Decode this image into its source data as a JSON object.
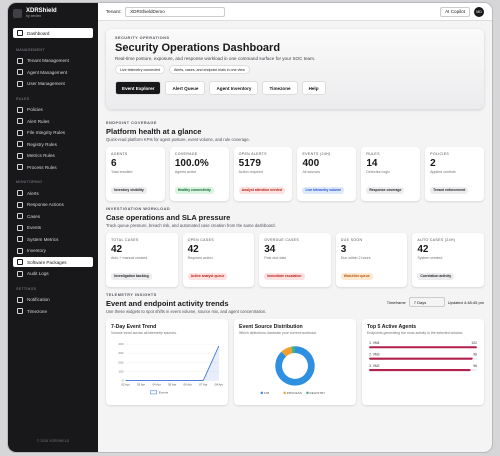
{
  "sidebar": {
    "brand": "XDRShield",
    "tagline": "by xerdex",
    "home": "Dashboard",
    "groups": [
      {
        "heading": "MANAGEMENT",
        "items": [
          {
            "label": "Tenant Management"
          },
          {
            "label": "Agent Management"
          },
          {
            "label": "User Management"
          }
        ]
      },
      {
        "heading": "RULES",
        "items": [
          {
            "label": "Policies"
          },
          {
            "label": "Alert Rules"
          },
          {
            "label": "File Integrity Rules"
          },
          {
            "label": "Registry Rules"
          },
          {
            "label": "Metrics Rules"
          },
          {
            "label": "Process Rules"
          }
        ]
      },
      {
        "heading": "MONITORING",
        "items": [
          {
            "label": "Alerts"
          },
          {
            "label": "Response Actions"
          },
          {
            "label": "Cases"
          },
          {
            "label": "Events"
          },
          {
            "label": "System Metrics"
          },
          {
            "label": "Inventory"
          },
          {
            "label": "Software Packages",
            "highlighted": true
          },
          {
            "label": "Audit Logs"
          }
        ]
      },
      {
        "heading": "SETTINGS",
        "items": [
          {
            "label": "Notification"
          },
          {
            "label": "Timezone"
          }
        ]
      }
    ],
    "footer": "© 2026 XDRSHIELD"
  },
  "topbar": {
    "tenant_label": "Tenant:",
    "tenant": "XDRShieldDemo",
    "copilot": "AI Copilot",
    "avatar": "MD"
  },
  "hero": {
    "eyebrow": "SECURITY OPERATIONS",
    "title": "Security Operations Dashboard",
    "subtitle": "Real-time posture, exposure, and response workload in one command surface for your SOC team.",
    "pills": [
      "Live telemetry connected",
      "Alerts, cases, and endpoint trials in one view"
    ],
    "buttons": [
      "Event Explorer",
      "Alert Queue",
      "Agent Inventory",
      "Timezone",
      "Help"
    ]
  },
  "sections": [
    {
      "eyebrow": "ENDPOINT COVERAGE",
      "title": "Platform health at a glance",
      "subtitle": "Quick-read platform KPIs for agent posture, event volume, and rule coverage.",
      "cards": [
        {
          "label": "AGENTS",
          "value": 6,
          "note": "Total enrolled",
          "badge": "Inventory visibility",
          "tone": "neutral"
        },
        {
          "label": "COVERAGE",
          "value": "100.0%",
          "note": "Agents active",
          "badge": "Healthy connectivity",
          "tone": "green"
        },
        {
          "label": "OPEN ALERTS",
          "value": 5179,
          "note": "Action required",
          "badge": "Analyst attention needed",
          "tone": "red"
        },
        {
          "label": "EVENTS (24H)",
          "value": 400,
          "note": "All sources",
          "badge": "Live telemetry volume",
          "tone": "blue"
        },
        {
          "label": "RULES",
          "value": 14,
          "note": "Detection logic",
          "badge": "Response coverage",
          "tone": "neutral"
        },
        {
          "label": "POLICIES",
          "value": 2,
          "note": "Applied controls",
          "badge": "Tenant enforcement",
          "tone": "neutral"
        }
      ]
    },
    {
      "eyebrow": "INVESTIGATION WORKLOAD",
      "title": "Case operations and SLA pressure",
      "subtitle": "Track queue pressure, breach risk, and automated case creation from the same dashboard.",
      "cards": [
        {
          "label": "TOTAL CASES",
          "value": 42,
          "note": "Auto + manual created",
          "badge": "Investigation backlog",
          "tone": "neutral"
        },
        {
          "label": "OPEN CASES",
          "value": 42,
          "note": "Requires action",
          "badge": "Active analyst queue",
          "tone": "red"
        },
        {
          "label": "OVERDUE CASES",
          "value": 34,
          "note": "Past due date",
          "badge": "Immediate escalation",
          "tone": "red"
        },
        {
          "label": "DUE SOON",
          "value": 3,
          "note": "Due within 2 hours",
          "badge": "Watchlist queue",
          "tone": "orange"
        },
        {
          "label": "AUTO CASES (24H)",
          "value": 42,
          "note": "System created",
          "badge": "Correlation activity",
          "tone": "neutral"
        }
      ]
    }
  ],
  "telemetry": {
    "eyebrow": "TELEMETRY INSIGHTS",
    "title": "Event and endpoint activity trends",
    "subtitle": "Use these widgets to spot shifts in event volume, source mix, and agent concentration.",
    "timeframe_label": "Timeframe",
    "timeframe": "7 Days",
    "updated": "Updated 4:48:45 pm",
    "widgets": [
      {
        "title": "7-Day Event Trend",
        "subtitle": "Volume trend across all telemetry sources.",
        "chart": {
          "type": "line",
          "x": [
            "02 Apr",
            "03 Apr",
            "04 Apr",
            "05 Apr",
            "06 Apr",
            "07 Apr",
            "08 Apr"
          ],
          "series": [
            {
              "name": "Events",
              "color": "#3b6fd8",
              "values": [
                0,
                0,
                0,
                0,
                0,
                0,
                380
              ]
            }
          ],
          "ylim": [
            0,
            400
          ],
          "yticks": [
            0,
            100,
            200,
            300,
            400
          ]
        }
      },
      {
        "title": "Event Source Distribution",
        "subtitle": "Which detections dominate your current workload.",
        "chart": {
          "type": "pie",
          "categories": [
            "FIM",
            "PROCESS",
            "REGISTRY"
          ],
          "values": [
            88,
            9,
            3
          ],
          "colors": [
            "#2f8fe0",
            "#f0a030",
            "#3fb27f"
          ]
        }
      },
      {
        "title": "Top 5 Active Agents",
        "subtitle": "Endpoints generating the most activity in the selected window.",
        "chart": {
          "type": "bar",
          "categories": [
            "1. VM4",
            "2. VM3",
            "3. VM2"
          ],
          "values": [
            102,
            98,
            96
          ],
          "color": "#b3224d",
          "xlim": [
            0,
            102
          ]
        }
      }
    ]
  }
}
